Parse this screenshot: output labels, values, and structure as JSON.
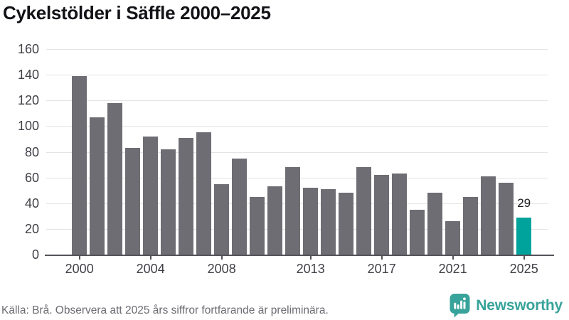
{
  "title": "Cykelstölder i Säffle 2000–2025",
  "source_note": "Källa: Brå. Observera att 2025 års siffror fortfarande är preliminära.",
  "branding": {
    "name": "Newsworthy",
    "logo_icon": "bar-chart-speech-bubble-icon",
    "color": "#38a39a"
  },
  "colors": {
    "bar": "#6e6d73",
    "highlight": "#00a39b",
    "gridline": "#e4e4e4",
    "axis": "#54535b",
    "tick_label": "#3f3f46",
    "title_text": "#121217",
    "source_text": "#6b6b72"
  },
  "chart_data": {
    "type": "bar",
    "title": "Cykelstölder i Säffle 2000–2025",
    "xlabel": "",
    "ylabel": "",
    "ylim": [
      0,
      160
    ],
    "yticks": [
      0,
      20,
      40,
      60,
      80,
      100,
      120,
      140,
      160
    ],
    "xticks": [
      2000,
      2004,
      2008,
      2013,
      2017,
      2021,
      2025
    ],
    "grid": "horizontal",
    "legend": "none",
    "categories": [
      2000,
      2001,
      2002,
      2003,
      2004,
      2005,
      2006,
      2007,
      2008,
      2009,
      2010,
      2011,
      2012,
      2013,
      2014,
      2015,
      2016,
      2017,
      2018,
      2019,
      2020,
      2021,
      2022,
      2023,
      2024,
      2025
    ],
    "values": [
      139,
      107,
      118,
      83,
      92,
      82,
      91,
      95,
      55,
      75,
      45,
      53,
      68,
      52,
      51,
      48,
      68,
      62,
      63,
      35,
      48,
      26,
      45,
      61,
      56,
      29
    ],
    "highlighted_category": 2025,
    "highlight_label": {
      "category": 2025,
      "text": "29"
    }
  }
}
